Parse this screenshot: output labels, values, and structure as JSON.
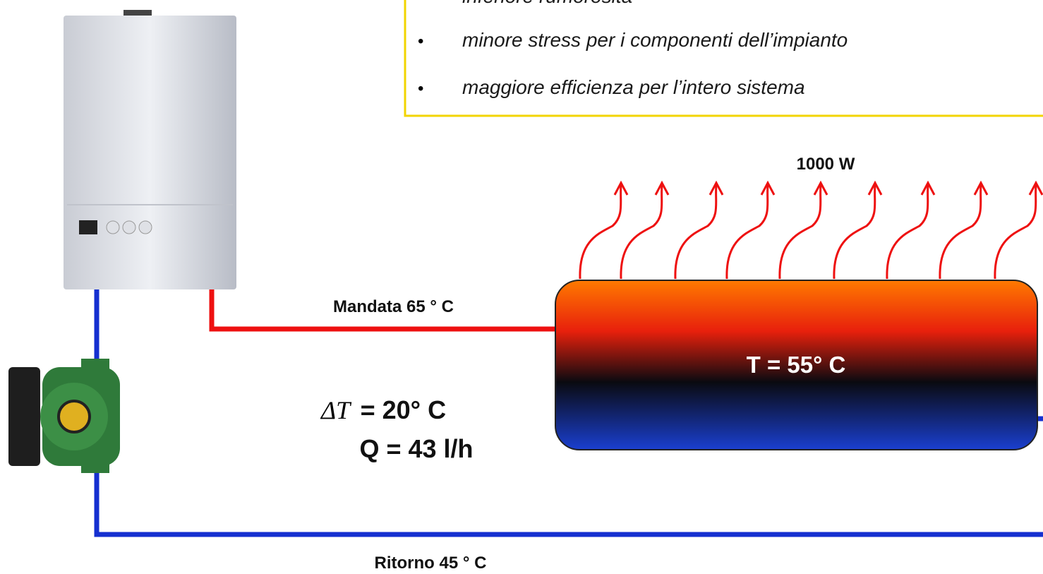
{
  "bullets": [
    "inferiore rumorosità",
    "minore stress per i componenti dell’impianto",
    "maggiore efficienza per l’intero sistema"
  ],
  "power": "1000 W",
  "supply": "Mandata 65 ° C",
  "radiator_temp": "T = 55° C",
  "delta_symbol": "ΔT",
  "delta_value": "= 20° C",
  "flow": "Q = 43 l/h",
  "return": "Ritorno 45 ° C"
}
